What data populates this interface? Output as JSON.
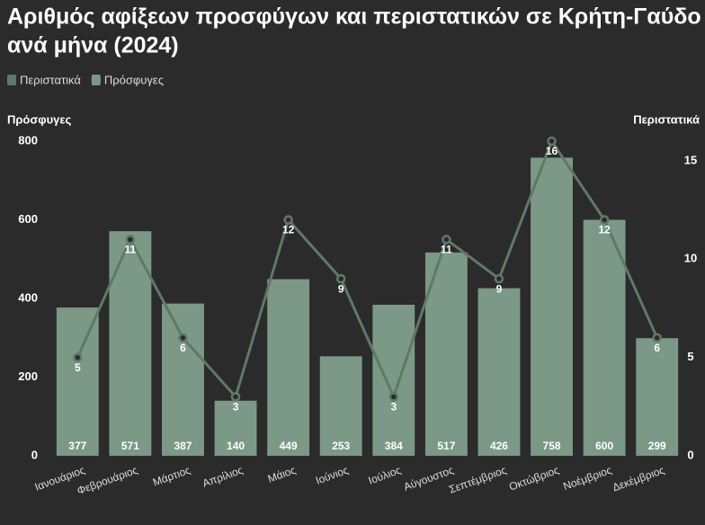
{
  "chart_data": {
    "type": "bar",
    "title": "Αριθμός αφίξεων προσφύγων και περιστατικών σε Κρήτη-Γαύδο",
    "subtitle": "ανά μήνα (2024)",
    "y_label": "Πρόσφυγες",
    "y2_label": "Περιστατικά",
    "categories": [
      "Ιανουάριος",
      "Φεβρουάριος",
      "Μάρτιος",
      "Απρίλιος",
      "Μάιος",
      "Ιούνιος",
      "Ιούλιος",
      "Αύγουστος",
      "Σεπτέμβριος",
      "Οκτώβριος",
      "Νοέμβριος",
      "Δεκέμβριος"
    ],
    "series": [
      {
        "name": "Περιστατικά",
        "type": "line",
        "axis": "y2",
        "color": "#5e7a67",
        "values": [
          5,
          11,
          6,
          3,
          12,
          9,
          3,
          11,
          9,
          16,
          12,
          6
        ]
      },
      {
        "name": "Πρόσφυγες",
        "type": "bar",
        "color": "#7b9986",
        "values": [
          377,
          571,
          387,
          140,
          449,
          253,
          384,
          517,
          426,
          758,
          600,
          299
        ]
      }
    ],
    "ylim": [
      0,
      800
    ],
    "yticks": [
      0,
      200,
      400,
      600,
      800
    ],
    "y2lim": [
      0,
      16
    ],
    "y2ticks": [
      0,
      5,
      10,
      15
    ]
  }
}
